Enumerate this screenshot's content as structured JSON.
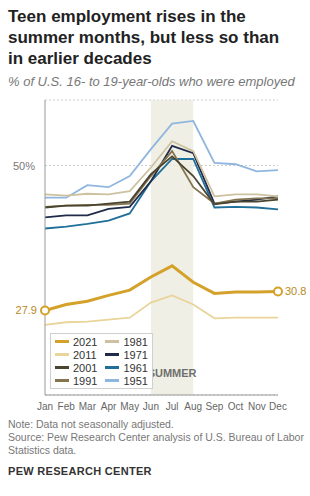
{
  "chart_data": {
    "type": "line",
    "title": "Teen employment rises in the summer months, but less so than in earlier decades",
    "subtitle": "% of U.S. 16- to 19-year-olds who were employed",
    "categories": [
      "Jan",
      "Feb",
      "Mar",
      "Apr",
      "May",
      "Jun",
      "Jul",
      "Aug",
      "Sep",
      "Oct",
      "Nov",
      "Dec"
    ],
    "series": [
      {
        "name": "2021",
        "color": "#d4a12a",
        "values": [
          27.9,
          28.8,
          29.3,
          30.2,
          31.0,
          33.0,
          34.7,
          32.2,
          30.5,
          30.7,
          30.7,
          30.8
        ],
        "value_labels": [
          "27.9",
          null,
          null,
          null,
          null,
          null,
          null,
          null,
          null,
          null,
          null,
          "30.8"
        ]
      },
      {
        "name": "2011",
        "color": "#e9d49a",
        "values": [
          25.7,
          26.1,
          26.2,
          26.5,
          26.8,
          29.1,
          30.2,
          28.8,
          26.7,
          26.8,
          26.8,
          26.8
        ]
      },
      {
        "name": "2001",
        "color": "#4a4530",
        "values": [
          43.6,
          43.9,
          43.9,
          44.2,
          44.5,
          48.7,
          51.4,
          48.4,
          44.1,
          44.5,
          44.5,
          44.8
        ]
      },
      {
        "name": "1991",
        "color": "#84744f",
        "values": [
          43.7,
          43.9,
          44.0,
          44.0,
          44.2,
          48.4,
          52.2,
          46.7,
          44.2,
          44.8,
          45.0,
          45.0
        ]
      },
      {
        "name": "1981",
        "color": "#cdc1a0",
        "values": [
          45.6,
          45.4,
          45.7,
          45.6,
          46.1,
          49.7,
          53.7,
          52.2,
          45.3,
          45.6,
          45.6,
          45.3
        ]
      },
      {
        "name": "1971",
        "color": "#1f2b48",
        "values": [
          42.1,
          42.4,
          42.4,
          43.4,
          43.7,
          47.6,
          53.0,
          51.9,
          44.2,
          44.5,
          44.8,
          45.3
        ]
      },
      {
        "name": "1961",
        "color": "#1f6f99",
        "values": [
          40.4,
          40.7,
          41.1,
          41.6,
          42.7,
          47.6,
          51.0,
          51.0,
          43.6,
          43.7,
          43.6,
          43.3
        ]
      },
      {
        "name": "1951",
        "color": "#8fb6de",
        "values": [
          45.1,
          45.1,
          47.0,
          46.7,
          48.4,
          52.5,
          56.4,
          56.8,
          50.4,
          50.2,
          49.1,
          49.3
        ]
      }
    ],
    "ylim": [
      15,
      60
    ],
    "yticks": [
      {
        "value": 50,
        "label": "50%"
      }
    ],
    "grid": true,
    "legend": "bottom left",
    "annotations": [
      {
        "text": "SUMMER",
        "x_start": "Jun",
        "x_end": "Aug"
      }
    ],
    "note": "Note: Data not seasonally adjusted.",
    "source": "Source: Pew Research Center analysis of U.S. Bureau of Labor Statistics data.",
    "credit": "PEW RESEARCH CENTER"
  }
}
